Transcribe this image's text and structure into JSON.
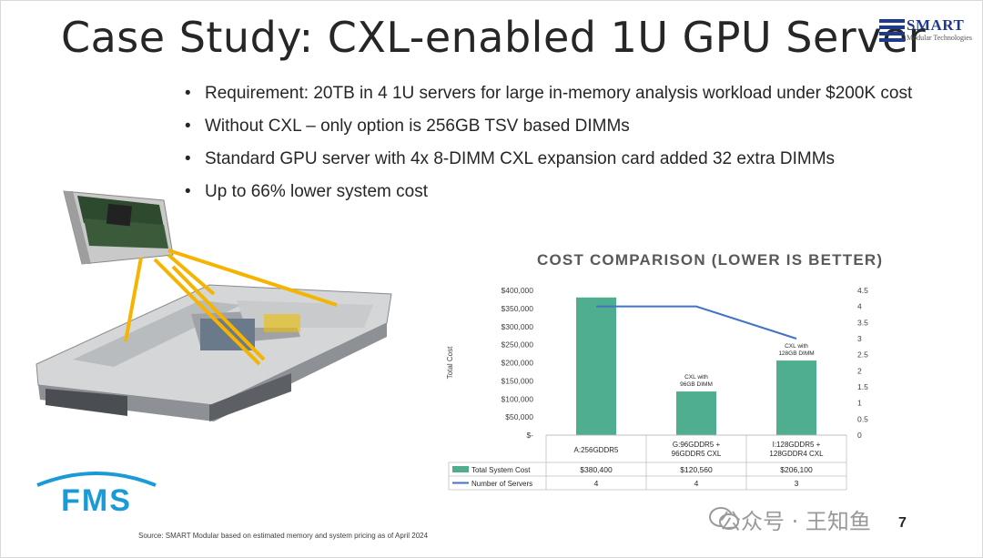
{
  "slide": {
    "title": "Case Study: CXL-enabled 1U GPU Server",
    "bullets": [
      "Requirement: 20TB in 4 1U servers for large in-memory analysis workload under $200K cost",
      "Without CXL – only option is 256GB TSV based DIMMs",
      "Standard GPU server with 4x 8-DIMM CXL expansion card added 32 extra DIMMs",
      "Up to 66% lower system cost"
    ],
    "source": "Source: SMART Modular based on estimated memory and system pricing as of April 2024",
    "page_number": "7",
    "watermark": "公众号 · 王知鱼"
  },
  "logos": {
    "smart_name": "SMART",
    "smart_sub": "Modular Technologies",
    "fms_name": "FMS"
  },
  "colors": {
    "bar": "#4fae8f",
    "line": "#4472c4",
    "arrow": "#f4b400",
    "fms": "#1a9ad6",
    "smart": "#1f3a8a"
  },
  "chart_data": {
    "type": "bar",
    "title": "COST COMPARISON (LOWER IS BETTER)",
    "ylabel": "Total Cost",
    "categories": [
      "A:256GDDR5",
      "G:96GDDR5 + 96GDDR5 CXL",
      "I:128GDDR5 + 128GDDR4 CXL"
    ],
    "series": [
      {
        "name": "Total System Cost",
        "type": "bar",
        "axis": "left",
        "values": [
          380400,
          120560,
          206100
        ],
        "labels": [
          "$380,400",
          "$120,560",
          "$206,100"
        ]
      },
      {
        "name": "Number of Servers",
        "type": "line",
        "axis": "right",
        "values": [
          4,
          4,
          3
        ],
        "labels": [
          "4",
          "4",
          "3"
        ]
      }
    ],
    "y_left": {
      "min": 0,
      "max": 400000,
      "step": 50000,
      "ticks": [
        "$-",
        "$50,000",
        "$100,000",
        "$150,000",
        "$200,000",
        "$250,000",
        "$300,000",
        "$350,000",
        "$400,000"
      ]
    },
    "y_right": {
      "min": 0,
      "max": 4.5,
      "step": 0.5,
      "ticks": [
        "0",
        "0.5",
        "1",
        "1.5",
        "2",
        "2.5",
        "3",
        "3.5",
        "4",
        "4.5"
      ]
    },
    "annotations": [
      {
        "category": 1,
        "lines": [
          "CXL with",
          "96GB DIMM"
        ]
      },
      {
        "category": 2,
        "lines": [
          "CXL with",
          "128GB DIMM"
        ]
      }
    ],
    "data_table": true
  }
}
